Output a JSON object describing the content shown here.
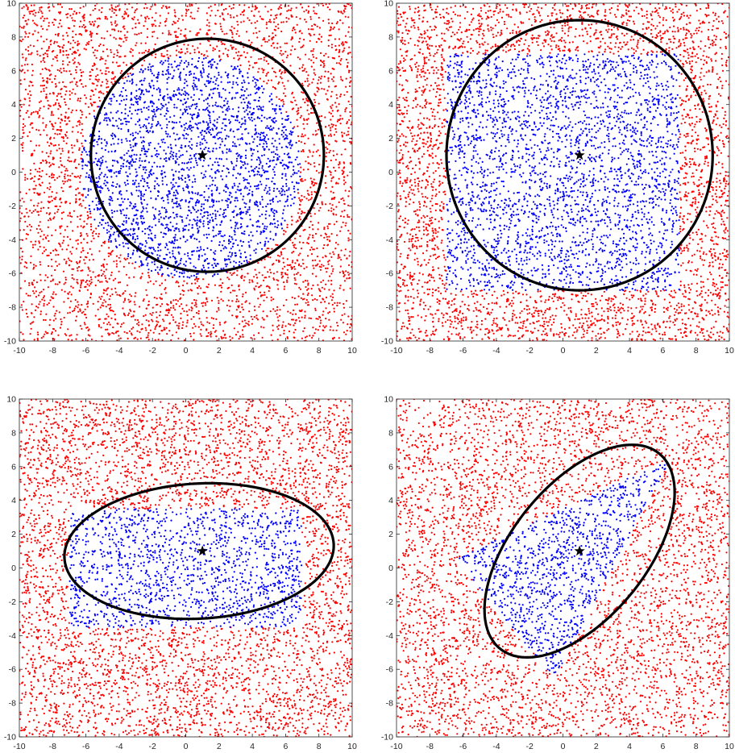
{
  "chart_data": [
    {
      "type": "scatter",
      "panel": "top-left",
      "xlim": [
        -10,
        10
      ],
      "ylim": [
        -10,
        10
      ],
      "xticks": [
        -10,
        -8,
        -6,
        -4,
        -2,
        0,
        2,
        4,
        6,
        8,
        10
      ],
      "yticks": [
        -10,
        -8,
        -6,
        -4,
        -2,
        0,
        2,
        4,
        6,
        8,
        10
      ],
      "grid": false,
      "region": {
        "shape": "disk",
        "center": [
          0.3,
          0.3
        ],
        "radius": 6.6
      },
      "center_marker": [
        1,
        1
      ],
      "ellipse": {
        "center": [
          1.3,
          1.0
        ],
        "semi_axes": [
          7.0,
          6.9
        ],
        "angle_deg": 0
      },
      "series": [
        {
          "color": "#ff0000",
          "count": 3400,
          "role": "outside region"
        },
        {
          "color": "#0000ff",
          "count": 2600,
          "role": "inside region"
        }
      ]
    },
    {
      "type": "scatter",
      "panel": "top-right",
      "xlim": [
        -10,
        10
      ],
      "ylim": [
        -10,
        10
      ],
      "xticks": [
        -10,
        -8,
        -6,
        -4,
        -2,
        0,
        2,
        4,
        6,
        8,
        10
      ],
      "yticks": [
        -10,
        -8,
        -6,
        -4,
        -2,
        0,
        2,
        4,
        6,
        8,
        10
      ],
      "grid": false,
      "region": {
        "shape": "square",
        "xrange": [
          -7,
          7
        ],
        "yrange": [
          -7,
          7
        ]
      },
      "center_marker": [
        1,
        1
      ],
      "ellipse": {
        "center": [
          1.0,
          1.0
        ],
        "semi_axes": [
          8.0,
          8.0
        ],
        "angle_deg": 10
      },
      "series": [
        {
          "color": "#ff0000",
          "count": 3200,
          "role": "outside region"
        },
        {
          "color": "#0000ff",
          "count": 3000,
          "role": "inside region"
        }
      ]
    },
    {
      "type": "scatter",
      "panel": "bottom-left",
      "xlim": [
        -10,
        10
      ],
      "ylim": [
        -10,
        10
      ],
      "xticks": [
        -10,
        -8,
        -6,
        -4,
        -2,
        0,
        2,
        4,
        6,
        8,
        10
      ],
      "yticks": [
        -10,
        -8,
        -6,
        -4,
        -2,
        0,
        2,
        4,
        6,
        8,
        10
      ],
      "grid": false,
      "region": {
        "shape": "rectangle",
        "xrange": [
          -7,
          7
        ],
        "yrange": [
          -3.5,
          3.5
        ]
      },
      "center_marker": [
        1,
        1
      ],
      "ellipse": {
        "center": [
          0.8,
          1.0
        ],
        "semi_axes": [
          8.1,
          4.0
        ],
        "angle_deg": 3
      },
      "series": [
        {
          "color": "#ff0000",
          "count": 4400,
          "role": "outside region"
        },
        {
          "color": "#0000ff",
          "count": 1500,
          "role": "inside region"
        }
      ]
    },
    {
      "type": "scatter",
      "panel": "bottom-right",
      "xlim": [
        -10,
        10
      ],
      "ylim": [
        -10,
        10
      ],
      "xticks": [
        -10,
        -8,
        -6,
        -4,
        -2,
        0,
        2,
        4,
        6,
        8,
        10
      ],
      "yticks": [
        -10,
        -8,
        -6,
        -4,
        -2,
        0,
        2,
        4,
        6,
        8,
        10
      ],
      "grid": false,
      "region": {
        "shape": "triangle",
        "vertices": [
          [
            6.5,
            6.5
          ],
          [
            -6.5,
            0.5
          ],
          [
            -0.5,
            -6.5
          ]
        ]
      },
      "center_marker": [
        1,
        1
      ],
      "ellipse": {
        "center": [
          1.0,
          1.0
        ],
        "semi_axes": [
          7.5,
          4.0
        ],
        "angle_deg": 50
      },
      "series": [
        {
          "color": "#ff0000",
          "count": 4300,
          "role": "outside region"
        },
        {
          "color": "#0000ff",
          "count": 1100,
          "role": "inside region"
        }
      ]
    }
  ]
}
